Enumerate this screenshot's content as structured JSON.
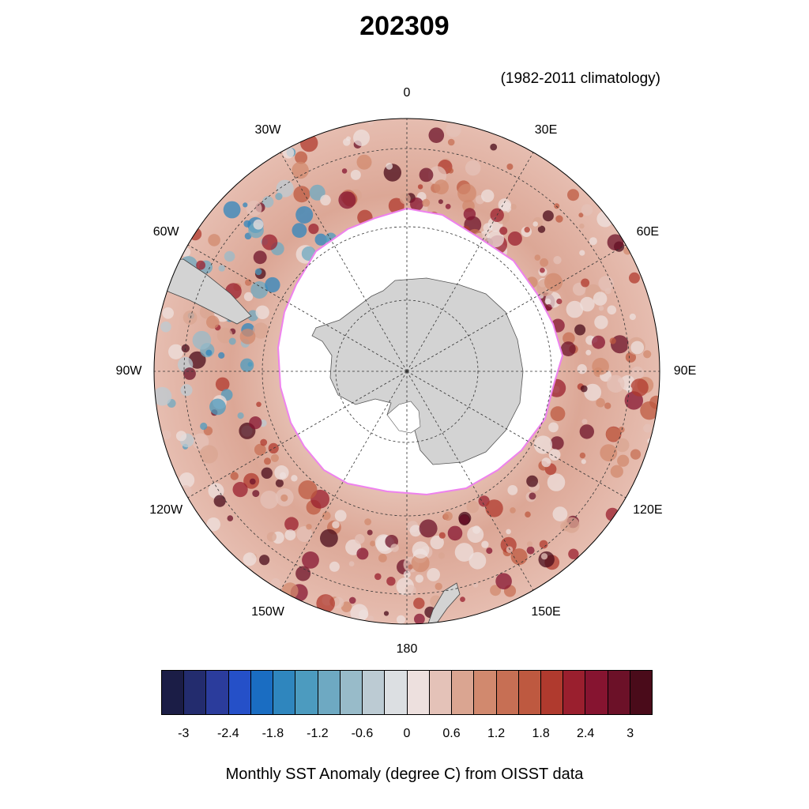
{
  "title": "202309",
  "subtitle": "(1982-2011 climatology)",
  "footer": "Monthly SST Anomaly (degree C) from OISST data",
  "map": {
    "projection": "south polar stereographic",
    "longitude_labels": [
      "0",
      "30E",
      "60E",
      "90E",
      "120E",
      "150E",
      "180",
      "150W",
      "120W",
      "90W",
      "60W",
      "30W"
    ],
    "land_color": "#d3d3d3",
    "sea_ice_color": "#ffffff",
    "ice_edge_color": "#ee82ee"
  },
  "colorbar": {
    "colors": [
      "#1b1d46",
      "#232c6e",
      "#2b3c9c",
      "#2550c8",
      "#1a6dc2",
      "#2f86be",
      "#4c9bbf",
      "#6ea9c2",
      "#98bbc9",
      "#bccbd3",
      "#dcdfe2",
      "#ede0de",
      "#e4c2b8",
      "#daa591",
      "#d1896e",
      "#c76f54",
      "#be5940",
      "#b03a2e",
      "#9a1f2e",
      "#861430",
      "#6c1128",
      "#4a0b1a"
    ],
    "tick_labels": [
      "-3",
      "-2.4",
      "-1.8",
      "-1.2",
      "-0.6",
      "0",
      "0.6",
      "1.2",
      "1.8",
      "2.4",
      "3"
    ]
  }
}
